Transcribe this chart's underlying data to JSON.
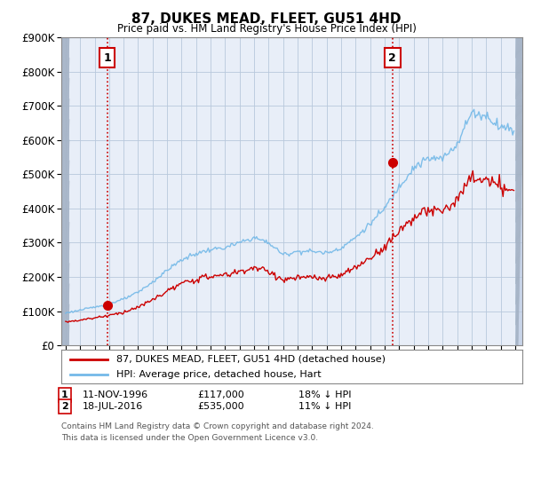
{
  "title": "87, DUKES MEAD, FLEET, GU51 4HD",
  "subtitle": "Price paid vs. HM Land Registry's House Price Index (HPI)",
  "ylim": [
    0,
    900000
  ],
  "yticks": [
    0,
    100000,
    200000,
    300000,
    400000,
    500000,
    600000,
    700000,
    800000,
    900000
  ],
  "ytick_labels": [
    "£0",
    "£100K",
    "£200K",
    "£300K",
    "£400K",
    "£500K",
    "£600K",
    "£700K",
    "£800K",
    "£900K"
  ],
  "sale1_date": 1996.87,
  "sale1_price": 117000,
  "sale1_label": "1",
  "sale2_date": 2016.54,
  "sale2_price": 535000,
  "sale2_label": "2",
  "hpi_color": "#74b9e8",
  "price_color": "#cc0000",
  "annotation_box_color": "#cc0000",
  "legend_label_price": "87, DUKES MEAD, FLEET, GU51 4HD (detached house)",
  "legend_label_hpi": "HPI: Average price, detached house, Hart",
  "footer": "Contains HM Land Registry data © Crown copyright and database right 2024.\nThis data is licensed under the Open Government Licence v3.0.",
  "background_color": "#ffffff",
  "plot_bg_color": "#e8eef8",
  "hpi_years": [
    1994,
    1995,
    1996,
    1997,
    1998,
    1999,
    2000,
    2001,
    2002,
    2003,
    2004,
    2005,
    2006,
    2007,
    2008,
    2009,
    2010,
    2011,
    2012,
    2013,
    2014,
    2015,
    2016,
    2017,
    2018,
    2019,
    2020,
    2021,
    2022,
    2023,
    2024,
    2025
  ],
  "hpi_values": [
    95000,
    103000,
    112000,
    122000,
    135000,
    155000,
    185000,
    220000,
    250000,
    268000,
    280000,
    285000,
    300000,
    315000,
    300000,
    265000,
    275000,
    275000,
    270000,
    285000,
    315000,
    355000,
    400000,
    465000,
    520000,
    545000,
    545000,
    590000,
    680000,
    670000,
    640000,
    630000
  ],
  "red_scale": 0.72,
  "hpi_noise": 0.012,
  "red_noise": 0.016,
  "xmin": 1993.7,
  "xmax": 2025.5,
  "xtick_start": 1994,
  "xtick_end": 2026
}
